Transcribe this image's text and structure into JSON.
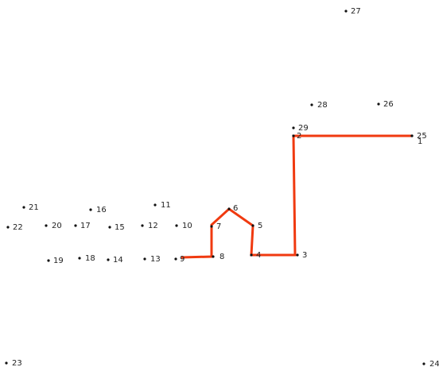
{
  "colors": {
    "line": "#f03a10",
    "dot": "#111111",
    "label": "#222222",
    "background": "#ffffff"
  },
  "dots": [
    {
      "n": "1"
    },
    {
      "n": "2"
    },
    {
      "n": "3"
    },
    {
      "n": "4"
    },
    {
      "n": "5"
    },
    {
      "n": "6"
    },
    {
      "n": "7"
    },
    {
      "n": "8"
    },
    {
      "n": "9"
    },
    {
      "n": "10"
    },
    {
      "n": "11"
    },
    {
      "n": "12"
    },
    {
      "n": "13"
    },
    {
      "n": "14"
    },
    {
      "n": "15"
    },
    {
      "n": "16"
    },
    {
      "n": "17"
    },
    {
      "n": "18"
    },
    {
      "n": "19"
    },
    {
      "n": "20"
    },
    {
      "n": "21"
    },
    {
      "n": "22"
    },
    {
      "n": "23"
    },
    {
      "n": "24"
    },
    {
      "n": "25"
    },
    {
      "n": "26"
    },
    {
      "n": "27"
    },
    {
      "n": "28"
    },
    {
      "n": "29"
    }
  ],
  "connected_through": 9
}
